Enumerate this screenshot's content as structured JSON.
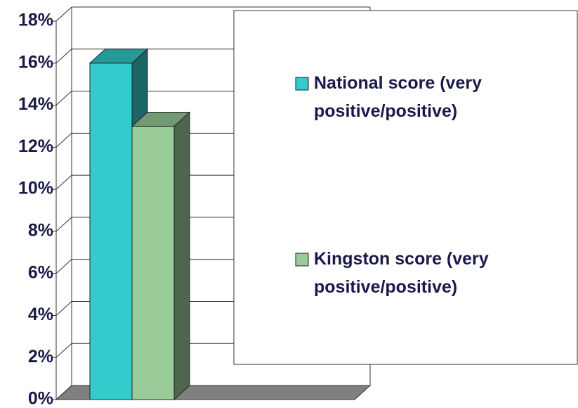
{
  "chart_data": {
    "type": "bar3d",
    "categories": [
      null
    ],
    "series": [
      {
        "name": "National score (very positive/positive)",
        "color": "#33CCCC",
        "values": [
          16
        ]
      },
      {
        "name": "Kingston score (very positive/positive)",
        "color": "#99CC99",
        "values": [
          13
        ]
      }
    ],
    "ylim": [
      0,
      18
    ],
    "yticks": [
      {
        "value": 0,
        "label": "0%"
      },
      {
        "value": 2,
        "label": "2%"
      },
      {
        "value": 4,
        "label": "4%"
      },
      {
        "value": 6,
        "label": "6%"
      },
      {
        "value": 8,
        "label": "8%"
      },
      {
        "value": 10,
        "label": "10%"
      },
      {
        "value": 12,
        "label": "12%"
      },
      {
        "value": 14,
        "label": "14%"
      },
      {
        "value": 16,
        "label": "16%"
      },
      {
        "value": 18,
        "label": "18%"
      }
    ],
    "grid": true
  }
}
